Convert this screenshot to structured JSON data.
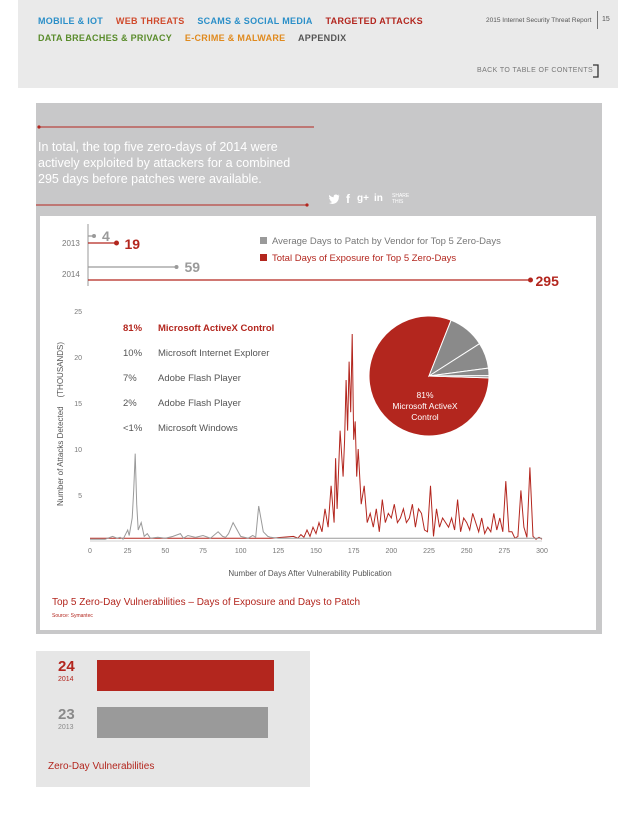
{
  "nav": {
    "row1": [
      {
        "label": "MOBILE & IOT",
        "color": "#2b8fc8"
      },
      {
        "label": "WEB THREATS",
        "color": "#d04a2c"
      },
      {
        "label": "SCAMS & SOCIAL MEDIA",
        "color": "#2b8fc8"
      },
      {
        "label": "TARGETED ATTACKS",
        "color": "#b3261e"
      }
    ],
    "row2": [
      {
        "label": "DATA BREACHES & PRIVACY",
        "color": "#5a8c2c"
      },
      {
        "label": "E-CRIME & MALWARE",
        "color": "#e08a1e"
      },
      {
        "label": "APPENDIX",
        "color": "#555555"
      }
    ],
    "report_title": "2015 Internet Security Threat Report",
    "page_number": "15",
    "back_to_toc": "BACK TO TABLE OF CONTENTS"
  },
  "intro": {
    "line1": "In total, the top five zero-days of 2014 were",
    "line2": "actively exploited by attackers for a combined",
    "line3": "295 days before patches were available."
  },
  "share": {
    "icons": [
      "twitter-icon",
      "facebook-icon",
      "google-plus-icon",
      "linkedin-icon"
    ],
    "glyphs": {
      "twitter": "🐦",
      "facebook": "f",
      "google_plus": "g+",
      "linkedin": "in"
    },
    "line1": "SHARE",
    "line2": "THIS"
  },
  "exposure": {
    "year_2013": "2013",
    "year_2014": "2014",
    "avg_2013": "4",
    "total_2013": "19",
    "avg_2014": "59",
    "total_2014": "295",
    "legend_avg": "Average Days to Patch by Vendor for Top 5 Zero-Days",
    "legend_total": "Total Days of Exposure for Top 5 Zero-Days",
    "color_avg": "#9a9a9a",
    "color_total": "#b3261e",
    "scale_max_days": 300
  },
  "chart_data": {
    "type": "line",
    "xlabel": "Number of Days After Vulnerability Publication",
    "ylabel": "Number of Attacks Detected    (THOUSANDS)",
    "xlim": [
      0,
      300
    ],
    "ylim": [
      0,
      25
    ],
    "xticks": [
      0,
      25,
      50,
      75,
      100,
      125,
      150,
      175,
      200,
      225,
      250,
      275,
      300
    ],
    "yticks": [
      5,
      10,
      15,
      20,
      25
    ],
    "grid": false,
    "series": [
      {
        "color": "#b3261e",
        "x": [
          0,
          120,
          135,
          138,
          140,
          142,
          144,
          146,
          148,
          150,
          152,
          154,
          156,
          158,
          160,
          162,
          163,
          164,
          166,
          168,
          169,
          170,
          171,
          172,
          173,
          174,
          175,
          176,
          177,
          178,
          180,
          182,
          184,
          186,
          188,
          190,
          192,
          194,
          196,
          198,
          200,
          202,
          204,
          206,
          208,
          210,
          212,
          214,
          216,
          218,
          220,
          222,
          224,
          226,
          228,
          230,
          232,
          234,
          236,
          238,
          240,
          242,
          244,
          246,
          248,
          250,
          252,
          254,
          256,
          258,
          260,
          262,
          264,
          266,
          268,
          270,
          272,
          274,
          276,
          278,
          280,
          282,
          284,
          286,
          288,
          290,
          292,
          294,
          296,
          298,
          300
        ],
        "values": [
          0.3,
          0.3,
          0.5,
          0.3,
          0.7,
          0.4,
          1.2,
          0.5,
          1.5,
          0.8,
          2.0,
          1.0,
          3.5,
          1.5,
          6.0,
          2.0,
          9.0,
          3.5,
          12.0,
          7.0,
          11.0,
          17.5,
          12.0,
          19.5,
          14.0,
          22.5,
          11.0,
          13.0,
          7.0,
          10.0,
          4.0,
          6.0,
          2.0,
          3.0,
          1.5,
          3.5,
          1.0,
          4.5,
          2.0,
          3.0,
          2.5,
          4.0,
          2.0,
          2.5,
          3.5,
          2.0,
          2.5,
          4.0,
          1.5,
          3.5,
          3.0,
          1.2,
          1.0,
          6.0,
          0.5,
          3.5,
          1.5,
          2.5,
          2.0,
          1.5,
          2.5,
          1.2,
          4.5,
          1.0,
          2.5,
          2.0,
          1.2,
          3.0,
          2.0,
          1.0,
          2.5,
          0.8,
          1.5,
          1.0,
          3.0,
          1.2,
          2.5,
          1.0,
          6.5,
          1.0,
          1.0,
          0.3,
          0.5,
          5.5,
          1.5,
          0.4,
          8.0,
          0.5,
          0.2,
          0.4,
          0.2
        ]
      },
      {
        "color": "#9a9a9a",
        "x": [
          0,
          10,
          15,
          18,
          20,
          22,
          25,
          26,
          28,
          29,
          30,
          31,
          32,
          34,
          36,
          38,
          40,
          45,
          50,
          55,
          60,
          62,
          65,
          70,
          75,
          80,
          85,
          88,
          90,
          92,
          95,
          100,
          105,
          108,
          110,
          112,
          115,
          118,
          120,
          125,
          130,
          135,
          140,
          145,
          150,
          160,
          170,
          180,
          190,
          200,
          210,
          220,
          230,
          240,
          250,
          260,
          270,
          280,
          290,
          300
        ],
        "values": [
          0.2,
          0.2,
          0.5,
          0.3,
          0.4,
          0.2,
          1.2,
          0.6,
          2.5,
          5.5,
          9.5,
          4.0,
          1.2,
          2.0,
          0.5,
          0.8,
          0.3,
          0.4,
          0.3,
          0.5,
          0.8,
          0.3,
          0.6,
          0.4,
          0.6,
          0.3,
          1.0,
          0.5,
          0.4,
          0.8,
          2.0,
          0.5,
          0.3,
          0.6,
          0.4,
          3.8,
          1.0,
          0.5,
          0.4,
          0.3,
          0.3,
          0.3,
          0.3,
          0.3,
          0.3,
          0.3,
          0.3,
          0.3,
          0.3,
          0.3,
          0.3,
          0.3,
          0.3,
          0.3,
          0.3,
          0.3,
          0.3,
          0.3,
          0.3,
          0.3
        ]
      }
    ],
    "pie": {
      "slices": [
        {
          "pct": "81%",
          "label": "Microsoft ActiveX Control",
          "value": 81,
          "color": "#b3261e"
        },
        {
          "pct": "10%",
          "label": "Microsoft Internet Explorer",
          "value": 10,
          "color": "#8a8a8a"
        },
        {
          "pct": "7%",
          "label": "Adobe Flash Player",
          "value": 7,
          "color": "#8a8a8a"
        },
        {
          "pct": "2%",
          "label": "Adobe Flash Player",
          "value": 2,
          "color": "#8a8a8a"
        },
        {
          "pct": "<1%",
          "label": "Microsoft Windows",
          "value": 0.6,
          "color": "#8a8a8a"
        }
      ],
      "center_label_pct": "81%",
      "center_label_line1": "Microsoft ActiveX",
      "center_label_line2": "Control"
    },
    "caption": "Top 5 Zero-Day Vulnerabilities – Days of Exposure and Days to Patch",
    "source": "Source: Symantec"
  },
  "zero_day": {
    "items": [
      {
        "count": "24",
        "year": "2014",
        "value": 24,
        "color": "#b3261e"
      },
      {
        "count": "23",
        "year": "2013",
        "value": 23,
        "color": "#9a9a9a"
      }
    ],
    "caption": "Zero-Day Vulnerabilities"
  }
}
